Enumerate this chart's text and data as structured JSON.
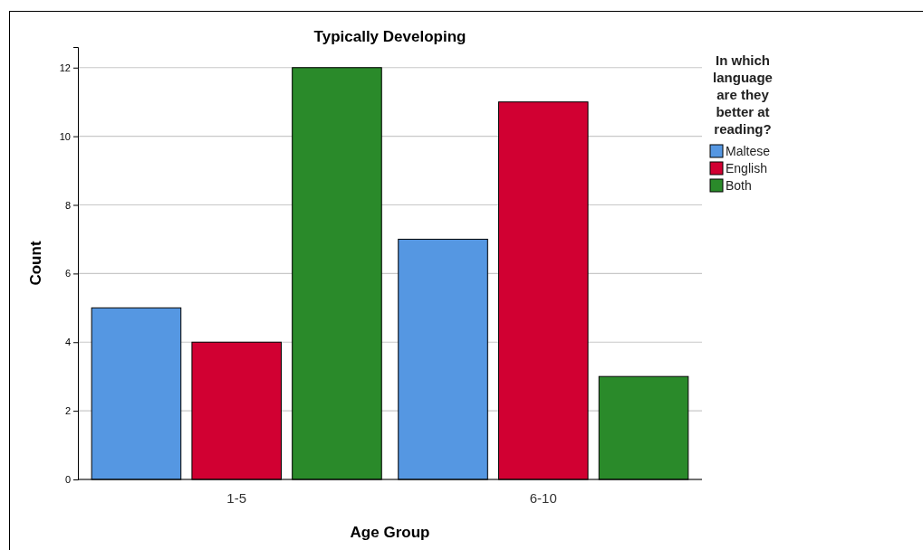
{
  "chart_data": {
    "type": "bar",
    "title": "Typically Developing",
    "xlabel": "Age Group",
    "ylabel": "Count",
    "legend_title": "In which language are they better at reading?",
    "categories": [
      "1-5",
      "6-10"
    ],
    "series": [
      {
        "name": "Maltese",
        "color": "#5597e2",
        "values": [
          5,
          7
        ]
      },
      {
        "name": "English",
        "color": "#d10032",
        "values": [
          4,
          11
        ]
      },
      {
        "name": "Both",
        "color": "#2a8a2a",
        "values": [
          12,
          3
        ]
      }
    ],
    "ylim": [
      0,
      12.6
    ],
    "yticks": [
      0,
      2,
      4,
      6,
      8,
      10,
      12
    ],
    "grid": "y",
    "legend": "right"
  }
}
